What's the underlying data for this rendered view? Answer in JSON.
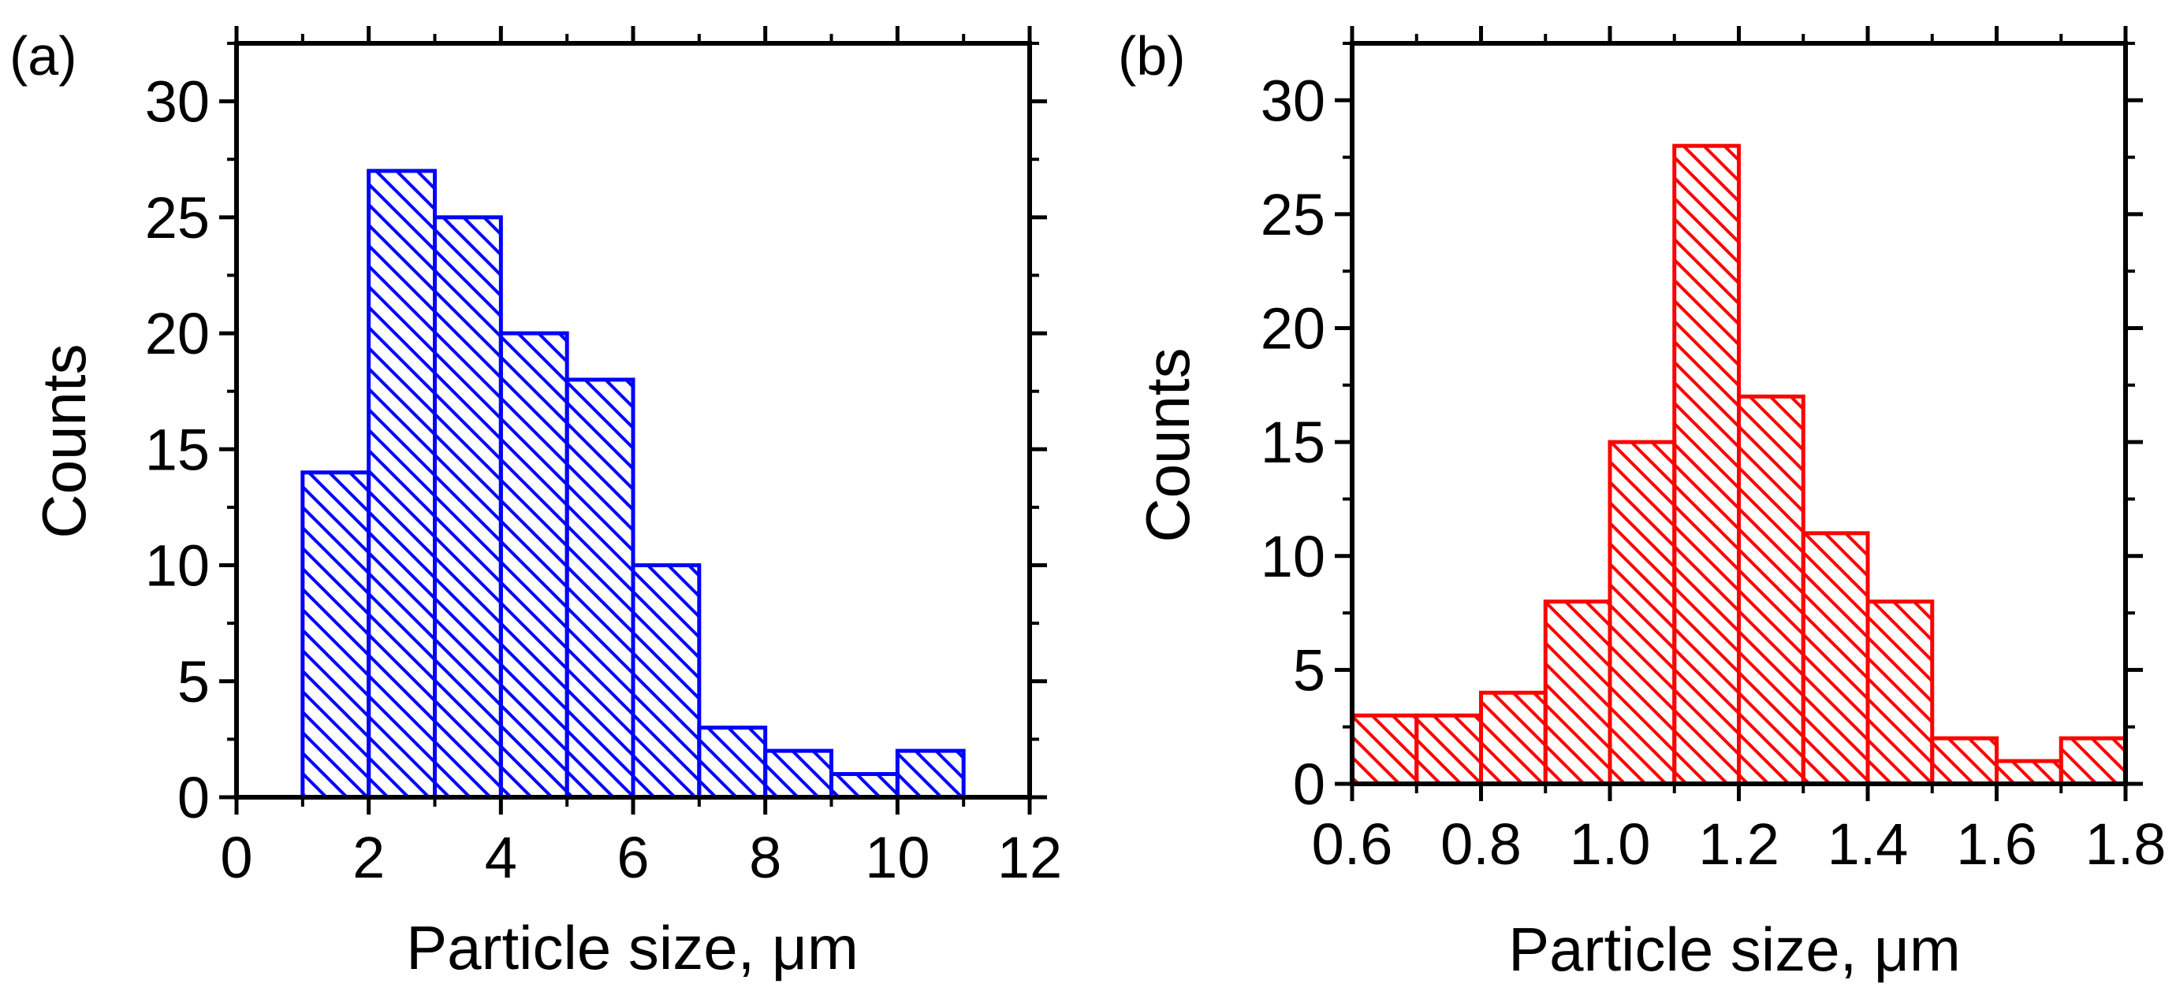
{
  "chart_data": [
    {
      "type": "bar",
      "panel_label": "(a)",
      "color": "#0000ff",
      "bins": [
        {
          "start": 1,
          "end": 2,
          "count": 14
        },
        {
          "start": 2,
          "end": 3,
          "count": 27
        },
        {
          "start": 3,
          "end": 4,
          "count": 25
        },
        {
          "start": 4,
          "end": 5,
          "count": 20
        },
        {
          "start": 5,
          "end": 6,
          "count": 18
        },
        {
          "start": 6,
          "end": 7,
          "count": 10
        },
        {
          "start": 7,
          "end": 8,
          "count": 3
        },
        {
          "start": 8,
          "end": 9,
          "count": 2
        },
        {
          "start": 9,
          "end": 10,
          "count": 1
        },
        {
          "start": 10,
          "end": 11,
          "count": 2
        }
      ],
      "xlim": [
        0,
        12
      ],
      "ylim": [
        0,
        32.5
      ],
      "xticks": [
        0,
        2,
        4,
        6,
        8,
        10,
        12
      ],
      "xtick_labels": [
        "0",
        "2",
        "4",
        "6",
        "8",
        "10",
        "12"
      ],
      "yticks": [
        0,
        5,
        10,
        15,
        20,
        25,
        30
      ],
      "ytick_labels": [
        "0",
        "5",
        "10",
        "15",
        "20",
        "25",
        "30"
      ],
      "xlabel": "Particle size, μm",
      "ylabel": "Counts"
    },
    {
      "type": "bar",
      "panel_label": "(b)",
      "color": "#ff0000",
      "bins": [
        {
          "start": 0.6,
          "end": 0.7,
          "count": 3
        },
        {
          "start": 0.7,
          "end": 0.8,
          "count": 3
        },
        {
          "start": 0.8,
          "end": 0.9,
          "count": 4
        },
        {
          "start": 0.9,
          "end": 1.0,
          "count": 8
        },
        {
          "start": 1.0,
          "end": 1.1,
          "count": 15
        },
        {
          "start": 1.1,
          "end": 1.2,
          "count": 28
        },
        {
          "start": 1.2,
          "end": 1.3,
          "count": 17
        },
        {
          "start": 1.3,
          "end": 1.4,
          "count": 11
        },
        {
          "start": 1.4,
          "end": 1.5,
          "count": 8
        },
        {
          "start": 1.5,
          "end": 1.6,
          "count": 2
        },
        {
          "start": 1.6,
          "end": 1.7,
          "count": 1
        },
        {
          "start": 1.7,
          "end": 1.8,
          "count": 2
        }
      ],
      "xlim": [
        0.6,
        1.8
      ],
      "ylim": [
        0,
        32.5
      ],
      "xticks": [
        0.6,
        0.8,
        1.0,
        1.2,
        1.4,
        1.6,
        1.8
      ],
      "xtick_labels": [
        "0.6",
        "0.8",
        "1.0",
        "1.2",
        "1.4",
        "1.6",
        "1.8"
      ],
      "yticks": [
        0,
        5,
        10,
        15,
        20,
        25,
        30
      ],
      "ytick_labels": [
        "0",
        "5",
        "10",
        "15",
        "20",
        "25",
        "30"
      ],
      "xlabel": "Particle size, μm",
      "ylabel": "Counts"
    }
  ]
}
